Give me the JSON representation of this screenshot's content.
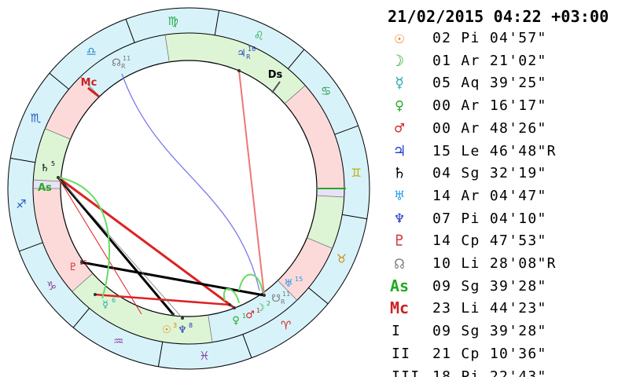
{
  "header": {
    "datetime": "21/02/2015 04:22 +03:00"
  },
  "colors": {
    "fire": "#fcdada",
    "earth": "#ddf5d5",
    "air": "#e8e2f8",
    "water": "#d8f2fa",
    "trine": "#dd2222",
    "square": "#000000",
    "opposition": "#7a7aee",
    "quincunx": "#66dd66"
  },
  "wheel": {
    "signs": [
      {
        "name": "aries-sign",
        "glyph": "♈",
        "color": "#dd2222"
      },
      {
        "name": "taurus-sign",
        "glyph": "♉",
        "color": "#cc8800"
      },
      {
        "name": "gemini-sign",
        "glyph": "♊",
        "color": "#bbaa00"
      },
      {
        "name": "cancer-sign",
        "glyph": "♋",
        "color": "#229944"
      },
      {
        "name": "leo-sign",
        "glyph": "♌",
        "color": "#22aa44"
      },
      {
        "name": "virgo-sign",
        "glyph": "♍",
        "color": "#22aa44"
      },
      {
        "name": "libra-sign",
        "glyph": "♎",
        "color": "#2288cc"
      },
      {
        "name": "scorpio-sign",
        "glyph": "♏",
        "color": "#2255bb"
      },
      {
        "name": "sagittarius-sign",
        "glyph": "♐",
        "color": "#2255bb"
      },
      {
        "name": "capricorn-sign",
        "glyph": "♑",
        "color": "#884499"
      },
      {
        "name": "aquarius-sign",
        "glyph": "♒",
        "color": "#9944aa"
      },
      {
        "name": "pisces-sign",
        "glyph": "♓",
        "color": "#884499"
      }
    ],
    "planets": [
      {
        "name": "saturn-glyph",
        "glyph": "♄",
        "num": "5",
        "color": "#000000"
      },
      {
        "name": "ascendant-label",
        "glyph": "As",
        "num": "",
        "color": "#22aa22"
      },
      {
        "name": "midheaven-label",
        "glyph": "Mc",
        "num": "",
        "color": "#cc2222"
      },
      {
        "name": "north-node-glyph",
        "glyph": "☊",
        "num": "11",
        "sub": "R",
        "color": "#777777"
      },
      {
        "name": "jupiter-glyph",
        "glyph": "♃",
        "num": "16",
        "sub": "R",
        "color": "#2244cc"
      },
      {
        "name": "descendant-label",
        "glyph": "Ds",
        "num": "",
        "color": "#000000"
      },
      {
        "name": "pluto-glyph",
        "glyph": "♇",
        "num": "15",
        "color": "#cc2222"
      },
      {
        "name": "mercury-glyph",
        "glyph": "☿",
        "num": "6",
        "color": "#22aaaa"
      },
      {
        "name": "sun-glyph",
        "glyph": "☉",
        "num": "3",
        "color": "#ee7700"
      },
      {
        "name": "neptune-glyph",
        "glyph": "♆",
        "num": "8",
        "color": "#2233bb"
      },
      {
        "name": "venus-glyph",
        "glyph": "♀",
        "num": "1",
        "color": "#22aa22"
      },
      {
        "name": "mars-glyph",
        "glyph": "♂",
        "num": "1",
        "color": "#cc2222"
      },
      {
        "name": "moon-glyph",
        "glyph": "☽",
        "num": "2",
        "color": "#22aa22"
      },
      {
        "name": "uranus-glyph",
        "glyph": "♅",
        "num": "15",
        "color": "#2299ee"
      },
      {
        "name": "south-node-glyph",
        "glyph": "☋",
        "num": "11",
        "sub": "R",
        "color": "#777777"
      }
    ]
  },
  "positions": [
    {
      "name": "sun",
      "glyph": "☉",
      "color": "#ee7700",
      "text": "02 Pi 04'57\""
    },
    {
      "name": "moon",
      "glyph": "☽",
      "color": "#22aa22",
      "text": "01 Ar 21'02\""
    },
    {
      "name": "mercury",
      "glyph": "☿",
      "color": "#22aaaa",
      "text": "05 Aq 39'25\""
    },
    {
      "name": "venus",
      "glyph": "♀",
      "color": "#22aa22",
      "text": "00 Ar 16'17\""
    },
    {
      "name": "mars",
      "glyph": "♂",
      "color": "#cc2222",
      "text": "00 Ar 48'26\""
    },
    {
      "name": "jupiter",
      "glyph": "♃",
      "color": "#2244cc",
      "text": "15 Le 46'48\"R"
    },
    {
      "name": "saturn",
      "glyph": "♄",
      "color": "#000000",
      "text": "04 Sg 32'19\""
    },
    {
      "name": "uranus",
      "glyph": "♅",
      "color": "#2299ee",
      "text": "14 Ar 04'47\""
    },
    {
      "name": "neptune",
      "glyph": "♆",
      "color": "#2233bb",
      "text": "07 Pi 04'10\""
    },
    {
      "name": "pluto",
      "glyph": "♇",
      "color": "#cc2222",
      "text": "14 Cp 47'53\""
    },
    {
      "name": "north-node",
      "glyph": "☊",
      "color": "#777777",
      "text": "10 Li 28'08\"R"
    },
    {
      "name": "ascendant",
      "glyph": "As",
      "color": "#22aa22",
      "text": "09 Sg 39'28\""
    },
    {
      "name": "midheaven",
      "glyph": "Mc",
      "color": "#cc2222",
      "text": "23 Li 44'23\""
    }
  ],
  "houses": [
    {
      "label": "I",
      "text": "09 Sg 39'28\""
    },
    {
      "label": "II",
      "text": "21 Cp 10'36\""
    },
    {
      "label": "III",
      "text": "18 Pi 22'43\""
    }
  ]
}
